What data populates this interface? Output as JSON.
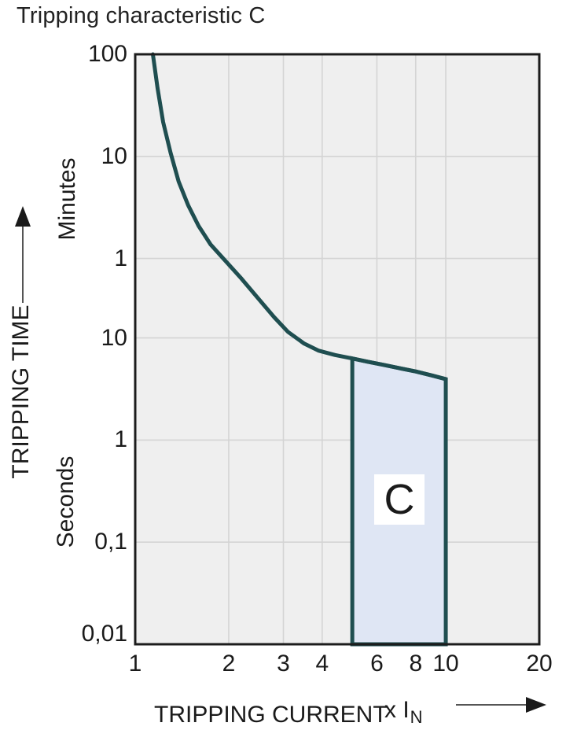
{
  "title": "Tripping characteristic C",
  "y_axis": {
    "axis_label": "TRIPPING TIME",
    "minutes_label": "Minutes",
    "seconds_label": "Seconds"
  },
  "x_axis": {
    "axis_label": "TRIPPING CURRENT",
    "unit_prefix": "x I",
    "unit_sub": "N"
  },
  "region": {
    "label": "C"
  },
  "colors": {
    "curve": "#1f4e50",
    "region_fill": "#dfe6f4",
    "region_border": "#1f4e50",
    "plot_bg": "#efefef",
    "grid": "#d4d4d4",
    "frame": "#1c1c1c",
    "text": "#1a1a1a",
    "arrow_line": "#555555",
    "arrow_head": "#1a1a1a"
  },
  "chart_data": {
    "type": "line",
    "title": "Tripping characteristic C",
    "xlabel": "TRIPPING CURRENT (x IN)",
    "ylabel": "TRIPPING TIME",
    "x_scale": "log",
    "y_scale": "log",
    "x_range": [
      1,
      20
    ],
    "y_range_seconds": [
      0.01,
      6000
    ],
    "x_ticks": [
      1,
      2,
      3,
      4,
      6,
      8,
      10,
      20
    ],
    "x_tick_labels": [
      "1",
      "2",
      "3",
      "4",
      "6",
      "8",
      "10",
      "20"
    ],
    "y_ticks_seconds": [
      6000,
      600,
      60,
      10,
      1,
      0.1,
      0.01
    ],
    "y_tick_labels": [
      "100",
      "10",
      "1",
      "10",
      "1",
      "0,1",
      "0,01"
    ],
    "y_units": [
      {
        "label": "Minutes",
        "applies_to": [
          "100",
          "10",
          "1"
        ]
      },
      {
        "label": "Seconds",
        "applies_to": [
          "10",
          "1",
          "0,1",
          "0,01"
        ]
      }
    ],
    "grid_x": [
      2,
      3,
      4,
      6,
      8,
      10
    ],
    "grid_y_seconds": [
      600,
      60,
      10,
      1,
      0.1
    ],
    "series": [
      {
        "name": "C tripping curve",
        "points": [
          [
            1.14,
            6000
          ],
          [
            1.18,
            2800
          ],
          [
            1.23,
            1300
          ],
          [
            1.3,
            650
          ],
          [
            1.38,
            340
          ],
          [
            1.48,
            200
          ],
          [
            1.6,
            125
          ],
          [
            1.75,
            82
          ],
          [
            1.95,
            57
          ],
          [
            2.2,
            38
          ],
          [
            2.5,
            24
          ],
          [
            2.8,
            16
          ],
          [
            3.1,
            11.5
          ],
          [
            3.5,
            8.8
          ],
          [
            3.9,
            7.5
          ],
          [
            4.4,
            6.8
          ],
          [
            5.0,
            6.3
          ],
          [
            5.6,
            5.85
          ],
          [
            6.3,
            5.45
          ],
          [
            7.1,
            5.05
          ],
          [
            8.0,
            4.7
          ],
          [
            9.0,
            4.3
          ],
          [
            10.0,
            3.95
          ]
        ]
      }
    ],
    "c_zone": {
      "label": "C",
      "x_from": 5,
      "x_to": 10,
      "t_bottom_seconds": 0.01,
      "top_follows_curve": true,
      "curve_value_at_x_from_seconds": 6.3,
      "curve_value_at_x_to_seconds": 3.95
    }
  }
}
